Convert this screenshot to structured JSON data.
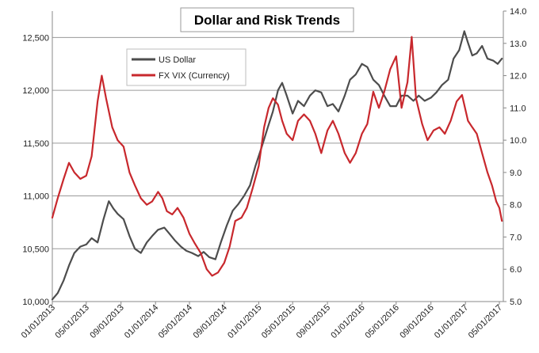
{
  "chart_data": {
    "type": "line",
    "title": "Dollar and Risk Trends",
    "legend_position": "top-left",
    "grid": true,
    "x_ticks": [
      "01/01/2013",
      "05/01/2013",
      "09/01/2013",
      "01/01/2014",
      "05/01/2014",
      "09/01/2014",
      "01/01/2015",
      "05/01/2015",
      "09/01/2015",
      "01/01/2016",
      "05/01/2016",
      "09/01/2016",
      "01/01/2017",
      "05/01/2017"
    ],
    "xlim": [
      "2013-01-01",
      "2017-05-15"
    ],
    "y_left": {
      "ticks": [
        "10,000",
        "10,500",
        "11,000",
        "11,500",
        "12,000",
        "12,500"
      ],
      "values": [
        10000,
        10500,
        11000,
        11500,
        12000,
        12500
      ],
      "ylim": [
        10000,
        12750
      ]
    },
    "y_right": {
      "ticks": [
        "5.0",
        "6.0",
        "7.0",
        "8.0",
        "9.0",
        "10.0",
        "11.0",
        "12.0",
        "13.0",
        "14.0"
      ],
      "values": [
        5,
        6,
        7,
        8,
        9,
        10,
        11,
        12,
        13,
        14
      ],
      "ylim": [
        5,
        14
      ]
    },
    "series": [
      {
        "name": "US Dollar",
        "axis": "left",
        "color": "#4d4d4d",
        "points": [
          [
            "2013-01-01",
            10020
          ],
          [
            "2013-01-20",
            10080
          ],
          [
            "2013-02-10",
            10200
          ],
          [
            "2013-03-01",
            10340
          ],
          [
            "2013-03-20",
            10460
          ],
          [
            "2013-04-10",
            10520
          ],
          [
            "2013-05-01",
            10540
          ],
          [
            "2013-05-20",
            10600
          ],
          [
            "2013-06-10",
            10560
          ],
          [
            "2013-07-01",
            10780
          ],
          [
            "2013-07-20",
            10950
          ],
          [
            "2013-08-05",
            10880
          ],
          [
            "2013-08-20",
            10830
          ],
          [
            "2013-09-10",
            10780
          ],
          [
            "2013-10-01",
            10620
          ],
          [
            "2013-10-20",
            10500
          ],
          [
            "2013-11-10",
            10460
          ],
          [
            "2013-12-01",
            10560
          ],
          [
            "2013-12-20",
            10620
          ],
          [
            "2014-01-10",
            10680
          ],
          [
            "2014-02-01",
            10700
          ],
          [
            "2014-02-20",
            10640
          ],
          [
            "2014-03-10",
            10580
          ],
          [
            "2014-04-01",
            10520
          ],
          [
            "2014-04-20",
            10480
          ],
          [
            "2014-05-10",
            10460
          ],
          [
            "2014-06-01",
            10430
          ],
          [
            "2014-06-20",
            10470
          ],
          [
            "2014-07-10",
            10420
          ],
          [
            "2014-08-01",
            10400
          ],
          [
            "2014-08-20",
            10560
          ],
          [
            "2014-09-10",
            10720
          ],
          [
            "2014-10-01",
            10860
          ],
          [
            "2014-10-20",
            10920
          ],
          [
            "2014-11-10",
            11000
          ],
          [
            "2014-12-01",
            11100
          ],
          [
            "2014-12-20",
            11280
          ],
          [
            "2015-01-10",
            11450
          ],
          [
            "2015-02-01",
            11640
          ],
          [
            "2015-02-20",
            11800
          ],
          [
            "2015-03-10",
            12000
          ],
          [
            "2015-03-25",
            12070
          ],
          [
            "2015-04-10",
            11950
          ],
          [
            "2015-05-01",
            11780
          ],
          [
            "2015-05-20",
            11900
          ],
          [
            "2015-06-10",
            11850
          ],
          [
            "2015-07-01",
            11950
          ],
          [
            "2015-07-20",
            12000
          ],
          [
            "2015-08-10",
            11980
          ],
          [
            "2015-09-01",
            11850
          ],
          [
            "2015-09-20",
            11870
          ],
          [
            "2015-10-10",
            11800
          ],
          [
            "2015-11-01",
            11950
          ],
          [
            "2015-11-20",
            12100
          ],
          [
            "2015-12-10",
            12150
          ],
          [
            "2016-01-01",
            12250
          ],
          [
            "2016-01-20",
            12220
          ],
          [
            "2016-02-10",
            12100
          ],
          [
            "2016-03-01",
            12050
          ],
          [
            "2016-03-20",
            11950
          ],
          [
            "2016-04-10",
            11850
          ],
          [
            "2016-05-01",
            11850
          ],
          [
            "2016-05-20",
            11950
          ],
          [
            "2016-06-10",
            11950
          ],
          [
            "2016-07-01",
            11900
          ],
          [
            "2016-07-20",
            11950
          ],
          [
            "2016-08-10",
            11900
          ],
          [
            "2016-09-01",
            11930
          ],
          [
            "2016-09-20",
            11980
          ],
          [
            "2016-10-10",
            12050
          ],
          [
            "2016-11-01",
            12100
          ],
          [
            "2016-11-20",
            12300
          ],
          [
            "2016-12-10",
            12380
          ],
          [
            "2016-12-28",
            12560
          ],
          [
            "2017-01-10",
            12450
          ],
          [
            "2017-01-25",
            12330
          ],
          [
            "2017-02-10",
            12350
          ],
          [
            "2017-03-01",
            12420
          ],
          [
            "2017-03-20",
            12300
          ],
          [
            "2017-04-10",
            12280
          ],
          [
            "2017-04-25",
            12250
          ],
          [
            "2017-05-10",
            12300
          ]
        ]
      },
      {
        "name": "FX VIX (Currency)",
        "axis": "right",
        "color": "#c8282d",
        "points": [
          [
            "2013-01-01",
            7.6
          ],
          [
            "2013-01-20",
            8.2
          ],
          [
            "2013-02-10",
            8.8
          ],
          [
            "2013-03-01",
            9.3
          ],
          [
            "2013-03-20",
            9.0
          ],
          [
            "2013-04-10",
            8.8
          ],
          [
            "2013-05-01",
            8.9
          ],
          [
            "2013-05-20",
            9.5
          ],
          [
            "2013-06-10",
            11.2
          ],
          [
            "2013-06-25",
            12.0
          ],
          [
            "2013-07-10",
            11.3
          ],
          [
            "2013-08-01",
            10.4
          ],
          [
            "2013-08-20",
            10.0
          ],
          [
            "2013-09-10",
            9.8
          ],
          [
            "2013-10-01",
            9.0
          ],
          [
            "2013-10-20",
            8.6
          ],
          [
            "2013-11-10",
            8.2
          ],
          [
            "2013-12-01",
            8.0
          ],
          [
            "2013-12-20",
            8.1
          ],
          [
            "2014-01-10",
            8.4
          ],
          [
            "2014-01-25",
            8.2
          ],
          [
            "2014-02-10",
            7.8
          ],
          [
            "2014-03-01",
            7.7
          ],
          [
            "2014-03-20",
            7.9
          ],
          [
            "2014-04-10",
            7.6
          ],
          [
            "2014-05-01",
            7.1
          ],
          [
            "2014-05-20",
            6.8
          ],
          [
            "2014-06-10",
            6.5
          ],
          [
            "2014-07-01",
            6.0
          ],
          [
            "2014-07-20",
            5.8
          ],
          [
            "2014-08-10",
            5.9
          ],
          [
            "2014-09-01",
            6.2
          ],
          [
            "2014-09-20",
            6.7
          ],
          [
            "2014-10-10",
            7.5
          ],
          [
            "2014-11-01",
            7.6
          ],
          [
            "2014-11-20",
            7.9
          ],
          [
            "2014-12-10",
            8.5
          ],
          [
            "2015-01-01",
            9.2
          ],
          [
            "2015-01-20",
            10.4
          ],
          [
            "2015-02-05",
            11.0
          ],
          [
            "2015-02-20",
            11.3
          ],
          [
            "2015-03-10",
            11.1
          ],
          [
            "2015-03-25",
            10.6
          ],
          [
            "2015-04-10",
            10.2
          ],
          [
            "2015-05-01",
            10.0
          ],
          [
            "2015-05-20",
            10.6
          ],
          [
            "2015-06-10",
            10.8
          ],
          [
            "2015-07-01",
            10.6
          ],
          [
            "2015-07-20",
            10.2
          ],
          [
            "2015-08-10",
            9.6
          ],
          [
            "2015-09-01",
            10.3
          ],
          [
            "2015-09-20",
            10.6
          ],
          [
            "2015-10-10",
            10.2
          ],
          [
            "2015-11-01",
            9.6
          ],
          [
            "2015-11-20",
            9.3
          ],
          [
            "2015-12-10",
            9.6
          ],
          [
            "2016-01-01",
            10.2
          ],
          [
            "2016-01-20",
            10.5
          ],
          [
            "2016-02-10",
            11.5
          ],
          [
            "2016-03-01",
            11.0
          ],
          [
            "2016-03-20",
            11.5
          ],
          [
            "2016-04-10",
            12.2
          ],
          [
            "2016-05-01",
            12.6
          ],
          [
            "2016-05-20",
            11.0
          ],
          [
            "2016-06-10",
            11.8
          ],
          [
            "2016-06-25",
            13.2
          ],
          [
            "2016-07-10",
            11.3
          ],
          [
            "2016-08-01",
            10.5
          ],
          [
            "2016-08-20",
            10.0
          ],
          [
            "2016-09-10",
            10.3
          ],
          [
            "2016-10-01",
            10.4
          ],
          [
            "2016-10-20",
            10.2
          ],
          [
            "2016-11-10",
            10.6
          ],
          [
            "2016-12-01",
            11.2
          ],
          [
            "2016-12-20",
            11.4
          ],
          [
            "2017-01-10",
            10.6
          ],
          [
            "2017-01-25",
            10.4
          ],
          [
            "2017-02-10",
            10.2
          ],
          [
            "2017-03-01",
            9.6
          ],
          [
            "2017-03-20",
            9.0
          ],
          [
            "2017-04-05",
            8.6
          ],
          [
            "2017-04-20",
            8.1
          ],
          [
            "2017-05-01",
            7.9
          ],
          [
            "2017-05-10",
            7.5
          ]
        ]
      }
    ]
  }
}
